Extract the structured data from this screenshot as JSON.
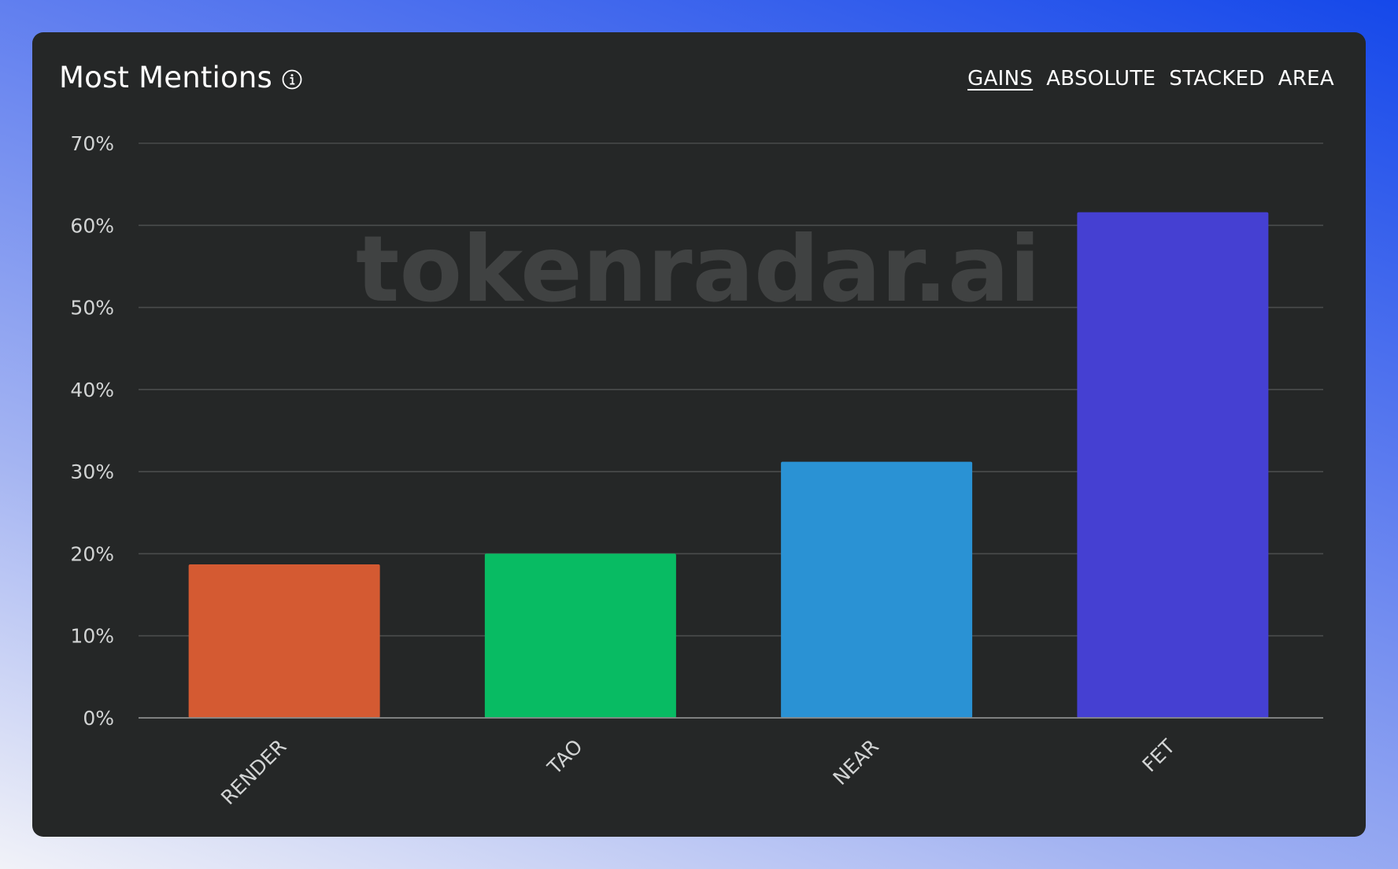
{
  "header": {
    "title": "Most Mentions",
    "info_icon": "info-icon"
  },
  "modes": [
    {
      "label": "GAINS",
      "active": true
    },
    {
      "label": "ABSOLUTE",
      "active": false
    },
    {
      "label": "STACKED",
      "active": false
    },
    {
      "label": "AREA",
      "active": false
    }
  ],
  "watermark": "tokenradar.ai",
  "chart_data": {
    "type": "bar",
    "categories": [
      "RENDER",
      "TAO",
      "NEAR",
      "FET"
    ],
    "values": [
      18.7,
      20.0,
      31.2,
      61.6
    ],
    "colors": [
      "#d45a32",
      "#08bb63",
      "#2a92d4",
      "#4540d2"
    ],
    "ylim": [
      0,
      70
    ],
    "yticks": [
      0,
      10,
      20,
      30,
      40,
      50,
      60,
      70
    ],
    "ytick_labels": [
      "0%",
      "10%",
      "20%",
      "30%",
      "40%",
      "50%",
      "60%",
      "70%"
    ],
    "grid": true,
    "legend": "none",
    "title": "",
    "xlabel": "",
    "ylabel": ""
  },
  "theme": {
    "card_bg": "#252727",
    "grid": "#4a4c4c",
    "axis": "#8b8d8d",
    "tick_text": "#d2d4d4",
    "watermark": "#404242"
  }
}
